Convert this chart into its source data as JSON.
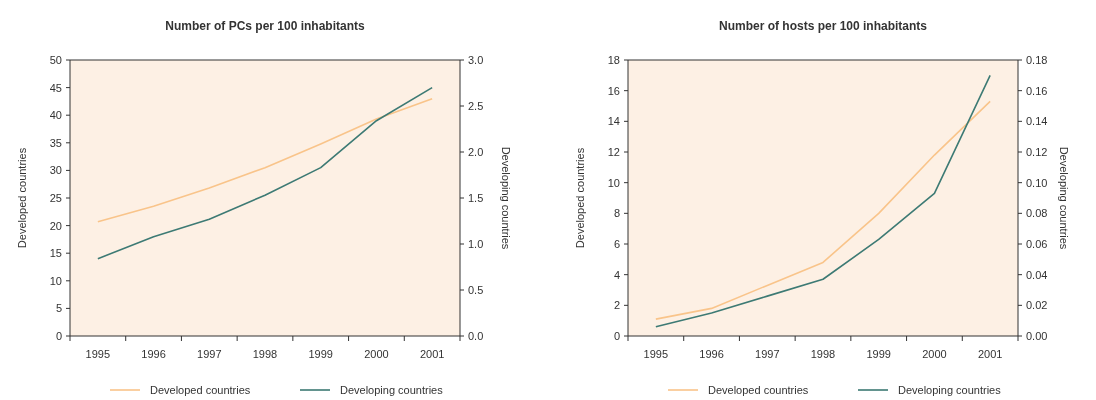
{
  "chart_data": [
    {
      "type": "line",
      "title": "Number of PCs per 100 inhabitants",
      "ylabel": "Developed countries",
      "y2label": "Developing countries",
      "categories": [
        "1995",
        "1996",
        "1997",
        "1998",
        "1999",
        "2000",
        "2001"
      ],
      "series": [
        {
          "name": "Developed countries",
          "color": "#f9c48a",
          "values": [
            20.7,
            23.5,
            26.8,
            30.5,
            34.8,
            39.3,
            43
          ]
        },
        {
          "name": "Developing countries",
          "color": "#3d7a74",
          "axis": "y2",
          "values": [
            0.84,
            1.08,
            1.27,
            1.53,
            1.83,
            2.34,
            2.7
          ]
        }
      ],
      "ylim": [
        0,
        50
      ],
      "yticks": [
        0,
        5,
        10,
        15,
        20,
        25,
        30,
        35,
        40,
        45,
        50
      ],
      "y2lim": [
        0,
        3
      ],
      "y2ticks": [
        {
          "value": 0,
          "label": "0.0"
        },
        {
          "value": 0.5,
          "label": "0.5"
        },
        {
          "value": 1,
          "label": "1.0"
        },
        {
          "value": 1.5,
          "label": "1.5"
        },
        {
          "value": 2,
          "label": "2.0"
        },
        {
          "value": 2.5,
          "label": "2.5"
        },
        {
          "value": 3,
          "label": "3.0"
        }
      ],
      "legend": "bottom",
      "grid": false,
      "marker": "none"
    },
    {
      "type": "line",
      "title": "Number of hosts per 100 inhabitants",
      "ylabel": "Developed countries",
      "y2label": "Developing countries",
      "categories": [
        "1995",
        "1996",
        "1997",
        "1998",
        "1999",
        "2000",
        "2001"
      ],
      "series": [
        {
          "name": "Developed countries",
          "color": "#f9c48a",
          "values": [
            1.1,
            1.8,
            3.3,
            4.8,
            8.0,
            11.8,
            15.3
          ]
        },
        {
          "name": "Developing countries",
          "color": "#3d7a74",
          "axis": "y2",
          "values": [
            0.006,
            0.015,
            0.026,
            0.037,
            0.063,
            0.093,
            0.17
          ]
        }
      ],
      "ylim": [
        0,
        18
      ],
      "yticks": [
        0,
        2,
        4,
        6,
        8,
        10,
        12,
        14,
        16,
        18
      ],
      "y2lim": [
        0,
        0.18
      ],
      "y2ticks": [
        {
          "value": 0,
          "label": "0.00"
        },
        {
          "value": 0.02,
          "label": "0.02"
        },
        {
          "value": 0.04,
          "label": "0.04"
        },
        {
          "value": 0.06,
          "label": "0.06"
        },
        {
          "value": 0.08,
          "label": "0.08"
        },
        {
          "value": 0.1,
          "label": "0.10"
        },
        {
          "value": 0.12,
          "label": "0.12"
        },
        {
          "value": 0.14,
          "label": "0.14"
        },
        {
          "value": 0.16,
          "label": "0.16"
        },
        {
          "value": 0.18,
          "label": "0.18"
        }
      ],
      "legend": "bottom",
      "grid": false,
      "marker": "none"
    }
  ]
}
